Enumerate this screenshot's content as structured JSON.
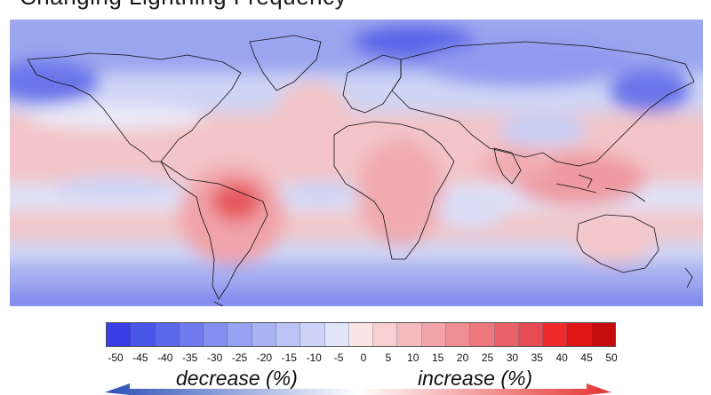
{
  "title_fragment": "Changing Lightning Frequency",
  "map": {
    "description_colors": {
      "strong_decrease": "#3a44e8",
      "moderate_decrease": "#8f9bf0",
      "slight_decrease": "#c5ccf5",
      "neutral": "#f4f3fb",
      "slight_increase": "#f8d4d6",
      "moderate_increase": "#f0a3a8",
      "strong_increase": "#e03a3a",
      "coastline": "#111111"
    }
  },
  "legend": {
    "colors": [
      "#3a3de6",
      "#4a55ea",
      "#5c68ec",
      "#6f7bee",
      "#8390f0",
      "#96a2f2",
      "#a9b4f4",
      "#bcc4f6",
      "#ced4f8",
      "#e1e5fa",
      "#fbe5e6",
      "#f8d0d2",
      "#f5babd",
      "#f2a4a8",
      "#ef8e93",
      "#ec787e",
      "#e96269",
      "#e64c54",
      "#ef2a2a",
      "#e01515",
      "#c40e0e"
    ],
    "ticks": [
      "-50",
      "-45",
      "-40",
      "-35",
      "-30",
      "-25",
      "-20",
      "-15",
      "-10",
      "-5",
      "0",
      "5",
      "10",
      "15",
      "20",
      "25",
      "30",
      "35",
      "40",
      "45",
      "50"
    ],
    "decrease_label": "decrease (%)",
    "increase_label": "increase (%)",
    "decrease_color": "#2b4fb8",
    "increase_color": "#e5322f"
  }
}
